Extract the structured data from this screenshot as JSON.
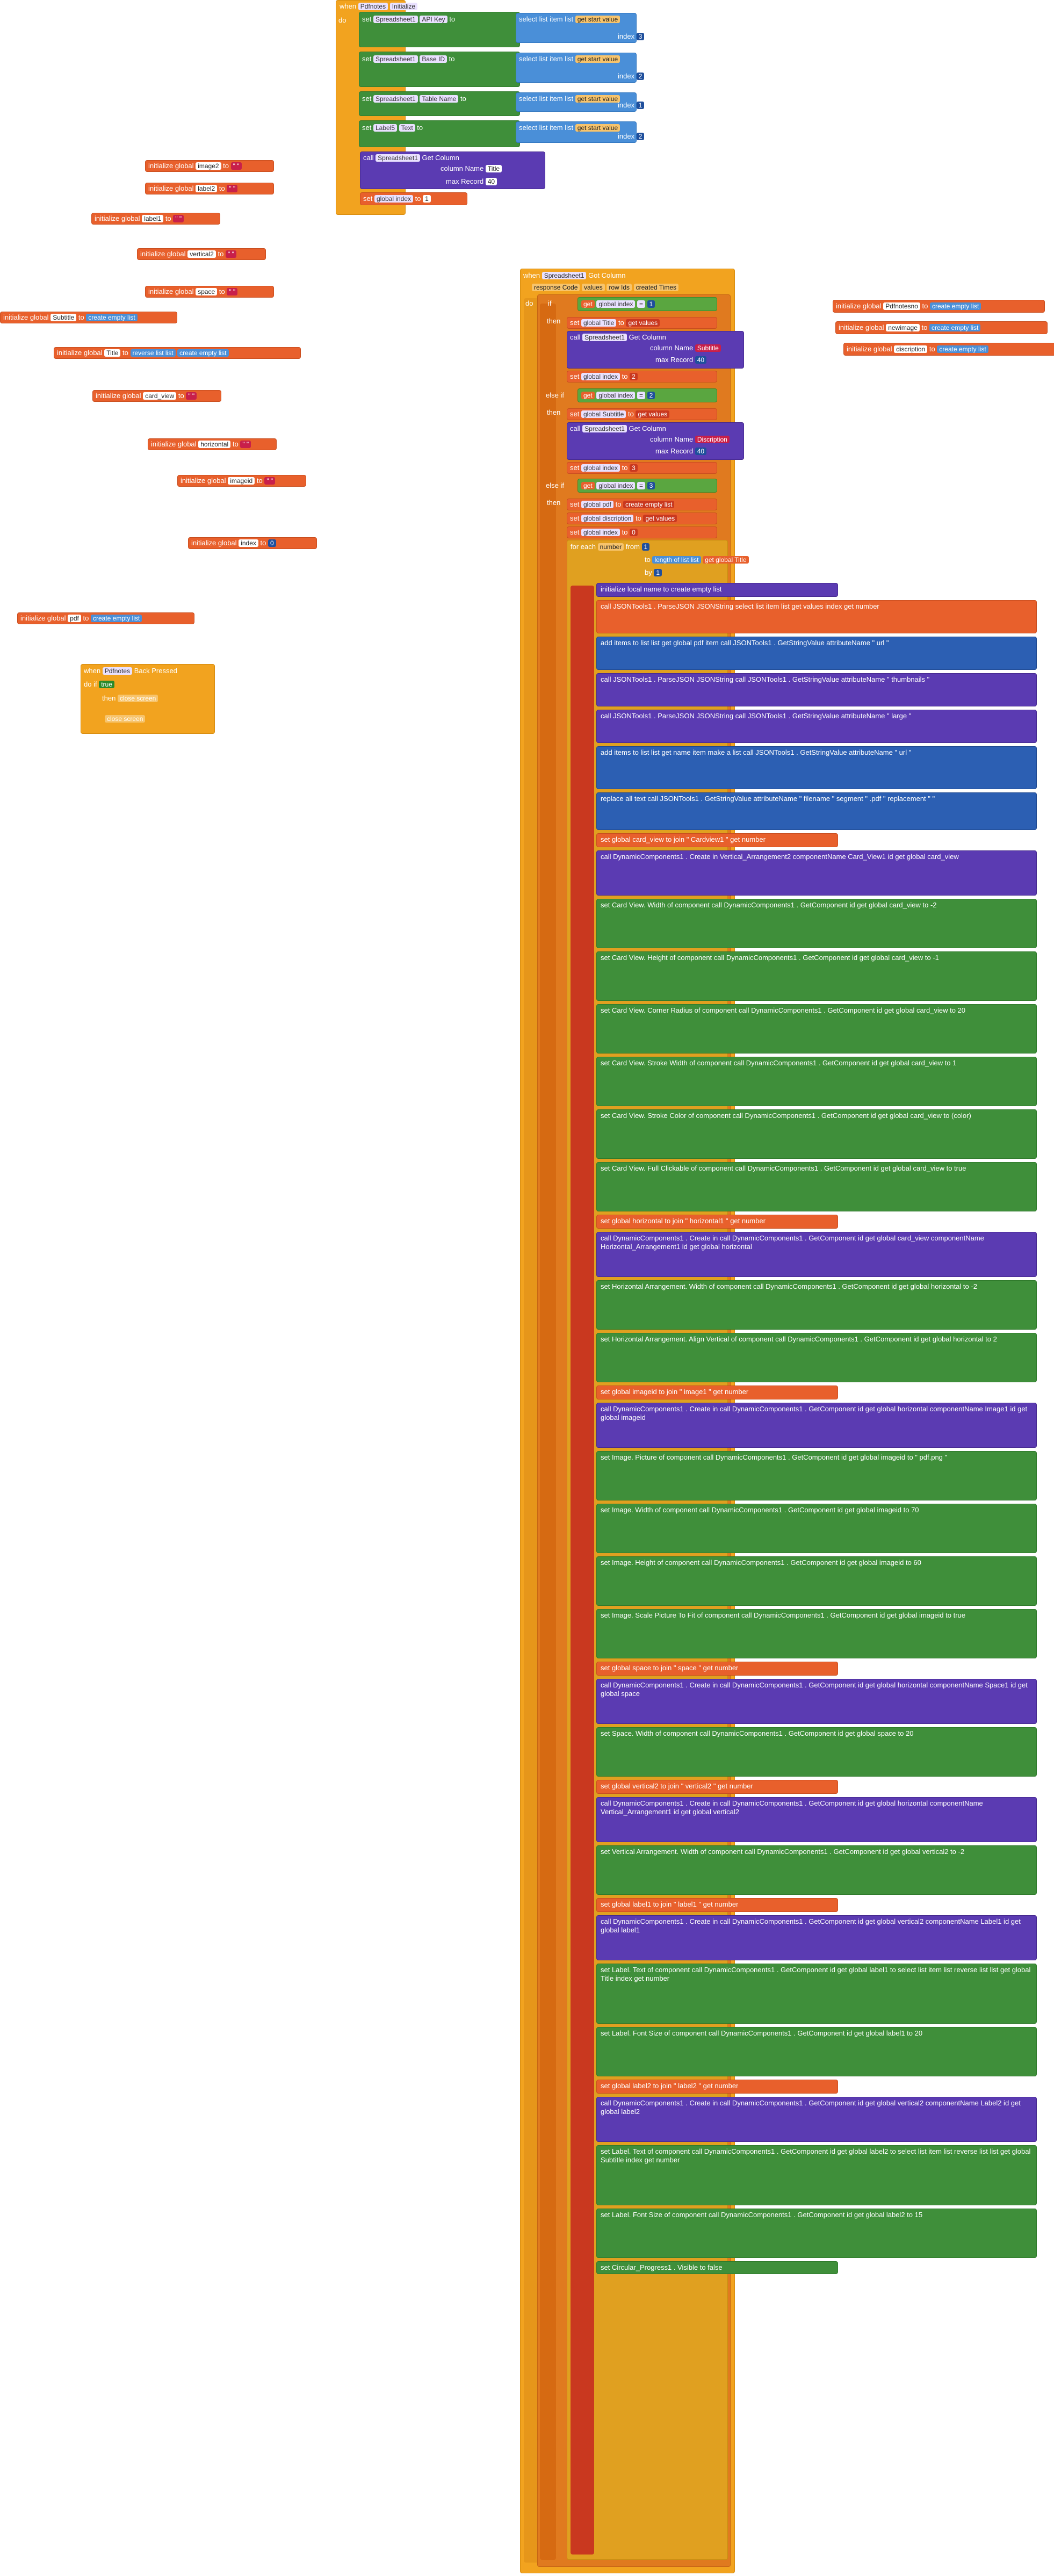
{
  "top_event": {
    "when_label": "when",
    "component": "Pdfnotes",
    "event": "Initialize",
    "do_label": "do",
    "rows": [
      {
        "set": "set",
        "target": "Spreadsheet1",
        "prop": "API Key",
        "to": "to",
        "fn": "select list item  list",
        "arg": "get start value",
        "index_label": "index",
        "index": "3"
      },
      {
        "set": "set",
        "target": "Spreadsheet1",
        "prop": "Base ID",
        "to": "to",
        "fn": "select list item  list",
        "arg": "get start value",
        "index_label": "index",
        "index": "2"
      },
      {
        "set": "set",
        "target": "Spreadsheet1",
        "prop": "Table Name",
        "to": "to",
        "fn": "select list item  list",
        "arg": "get start value",
        "index_label": "index",
        "index": "1"
      },
      {
        "set": "set",
        "target": "Label5",
        "prop": "Text",
        "to": "to",
        "fn": "select list item  list",
        "arg": "get start value",
        "index_label": "index",
        "index": "2"
      }
    ],
    "call": "call",
    "call_comp": "Spreadsheet1",
    "call_method": "Get Column",
    "column_name_label": "column Name",
    "column_name": "Title",
    "max_record_label": "max Record",
    "max_record": "40",
    "set_index": "set",
    "index_var": "global index",
    "index_to": "to",
    "index_val": "1"
  },
  "globals_left": [
    {
      "label": "initialize global",
      "name": "image2",
      "to": "to",
      "value": "\" \""
    },
    {
      "label": "initialize global",
      "name": "label2",
      "to": "to",
      "value": "\" \""
    },
    {
      "label": "initialize global",
      "name": "label1",
      "to": "to",
      "value": "\" \""
    },
    {
      "label": "initialize global",
      "name": "vertical2",
      "to": "to",
      "value": "\" \""
    },
    {
      "label": "initialize global",
      "name": "space",
      "to": "to",
      "value": "\" \""
    },
    {
      "label": "initialize global",
      "name": "Subtitle",
      "to": "to",
      "value": "create empty list"
    },
    {
      "label": "initialize global",
      "name": "Title",
      "to": "to",
      "value": "reverse list  list",
      "inner": "create empty list"
    },
    {
      "label": "initialize global",
      "name": "card_view",
      "to": "to",
      "value": "\" \""
    },
    {
      "label": "initialize global",
      "name": "horizontal",
      "to": "to",
      "value": "\" \""
    },
    {
      "label": "initialize global",
      "name": "imageid",
      "to": "to",
      "value": "\" \""
    },
    {
      "label": "initialize global",
      "name": "index",
      "to": "to",
      "value": "0"
    },
    {
      "label": "initialize global",
      "name": "pdf",
      "to": "to",
      "value": "create empty list"
    }
  ],
  "globals_right": [
    {
      "label": "initialize global",
      "name": "Pdfnotesno",
      "to": "to",
      "value": "create empty list"
    },
    {
      "label": "initialize global",
      "name": "newimage",
      "to": "to",
      "value": "create empty list"
    },
    {
      "label": "initialize global",
      "name": "discription",
      "to": "to",
      "value": "create empty list"
    }
  ],
  "back_event": {
    "when_label": "when",
    "component": "Pdfnotes",
    "event": "Back Pressed",
    "do_label": "do",
    "if_label": "if",
    "if_value": "true",
    "then_label": "then",
    "then_value": "close screen",
    "else_value": "close screen"
  },
  "main_event": {
    "when_label": "when",
    "component": "Spreadsheet1",
    "event": "Got Column",
    "params": [
      "response Code",
      "values",
      "row Ids",
      "created Times"
    ],
    "do_label": "do",
    "if_label": "if",
    "cond1": {
      "get": "get",
      "var": "global index",
      "op": "=",
      "val": "1"
    },
    "then_label": "then",
    "then1": [
      {
        "kind": "set",
        "text": "set",
        "var": "global Title",
        "to": "to",
        "val": "get values"
      },
      {
        "kind": "call",
        "text": "call",
        "comp": "Spreadsheet1",
        "method": "Get Column",
        "p1": "column Name",
        "v1": "Subtitle",
        "p2": "max Record",
        "v2": "40"
      },
      {
        "kind": "set",
        "text": "set",
        "var": "global index",
        "to": "to",
        "val": "2"
      }
    ],
    "elseif_label": "else if",
    "cond2": {
      "get": "get",
      "var": "global index",
      "op": "=",
      "val": "2"
    },
    "then2": [
      {
        "kind": "set",
        "text": "set",
        "var": "global Subtitle",
        "to": "to",
        "val": "get values"
      },
      {
        "kind": "call",
        "text": "call",
        "comp": "Spreadsheet1",
        "method": "Get Column",
        "p1": "column Name",
        "v1": "Discription",
        "p2": "max Record",
        "v2": "40"
      },
      {
        "kind": "set",
        "text": "set",
        "var": "global index",
        "to": "to",
        "val": "3"
      }
    ],
    "cond3": {
      "get": "get",
      "var": "global index",
      "op": "=",
      "val": "3"
    },
    "then3": [
      {
        "kind": "set",
        "text": "set",
        "var": "global pdf",
        "to": "to",
        "val": "create empty list"
      },
      {
        "kind": "set",
        "text": "set",
        "var": "global discription",
        "to": "to",
        "val": "get values"
      },
      {
        "kind": "set",
        "text": "set",
        "var": "global index",
        "to": "to",
        "val": "0"
      }
    ],
    "foreach": {
      "label": "for each",
      "var": "number",
      "from": "from",
      "from_val": "1",
      "to": "to",
      "to_val": "length of list  list",
      "to_inner": "get global Title",
      "by": "by",
      "by_val": "1"
    }
  },
  "loop_rows": [
    "initialize local  name  to  create empty list",
    "call JSONTools1 . ParseJSON   JSONString  select list item list  get values  index  get number",
    "add items to list  list  get global pdf   item  call JSONTools1 . GetStringValue  attributeName  \" url \"",
    "call JSONTools1 . ParseJSON   JSONString  call JSONTools1 . GetStringValue  attributeName  \" thumbnails \"",
    "call JSONTools1 . ParseJSON   JSONString  call JSONTools1 . GetStringValue  attributeName  \" large \"",
    "add items to list  list  get name   item  make a list  call JSONTools1 . GetStringValue  attributeName  \" url \"",
    "replace all text  call JSONTools1 . GetStringValue  attributeName  \" filename \"   segment  \" .pdf \"   replacement  \" \"",
    "set global card_view  to  join  \" Cardview1 \"  get number",
    "call DynamicComponents1 . Create  in  Vertical_Arrangement2  componentName  Card_View1  id  get global card_view",
    "set Card View. Width  of component  call DynamicComponents1 . GetComponent  id  get global card_view   to  -2",
    "set Card View. Height  of component  call DynamicComponents1 . GetComponent  id  get global card_view   to  -1",
    "set Card View. Corner Radius  of component  call DynamicComponents1 . GetComponent  id  get global card_view   to  20",
    "set Card View. Stroke Width  of component  call DynamicComponents1 . GetComponent  id  get global card_view   to  1",
    "set Card View. Stroke Color  of component  call DynamicComponents1 . GetComponent  id  get global card_view   to  (color)",
    "set Card View. Full Clickable  of component  call DynamicComponents1 . GetComponent  id  get global card_view   to  true",
    "set global horizontal  to  join  \" horizontal1 \"  get number",
    "call DynamicComponents1 . Create  in  call DynamicComponents1 . GetComponent  id  get global card_view   componentName  Horizontal_Arrangement1  id  get global horizontal",
    "set Horizontal Arrangement. Width  of component  call DynamicComponents1 . GetComponent  id  get global horizontal   to  -2",
    "set Horizontal Arrangement. Align Vertical  of component  call DynamicComponents1 . GetComponent  id  get global horizontal   to  2",
    "set global imageid  to  join  \" image1 \"  get number",
    "call DynamicComponents1 . Create  in  call DynamicComponents1 . GetComponent  id  get global horizontal   componentName  Image1  id  get global imageid",
    "set Image. Picture  of component  call DynamicComponents1 . GetComponent  id  get global imageid   to  \" pdf.png \"",
    "set Image. Width  of component  call DynamicComponents1 . GetComponent  id  get global imageid   to  70",
    "set Image. Height  of component  call DynamicComponents1 . GetComponent  id  get global imageid   to  60",
    "set Image. Scale Picture To Fit  of component  call DynamicComponents1 . GetComponent  id  get global imageid   to  true",
    "set global space  to  join  \" space \"  get number",
    "call DynamicComponents1 . Create  in  call DynamicComponents1 . GetComponent  id  get global horizontal   componentName  Space1  id  get global space",
    "set Space. Width  of component  call DynamicComponents1 . GetComponent  id  get global space   to  20",
    "set global vertical2  to  join  \" vertical2 \"  get number",
    "call DynamicComponents1 . Create  in  call DynamicComponents1 . GetComponent  id  get global horizontal   componentName  Vertical_Arrangement1  id  get global vertical2",
    "set Vertical Arrangement. Width  of component  call DynamicComponents1 . GetComponent  id  get global vertical2   to  -2",
    "set global label1  to  join  \" label1 \"  get number",
    "call DynamicComponents1 . Create  in  call DynamicComponents1 . GetComponent  id  get global vertical2   componentName  Label1  id  get global label1",
    "set Label. Text  of component  call DynamicComponents1 . GetComponent  id  get global label1   to  select list item  list  reverse list  list  get global Title   index  get number",
    "set Label. Font Size  of component  call DynamicComponents1 . GetComponent  id  get global label1   to  20",
    "set global label2  to  join  \" label2 \"  get number",
    "call DynamicComponents1 . Create  in  call DynamicComponents1 . GetComponent  id  get global vertical2   componentName  Label2  id  get global label2",
    "set Label. Text  of component  call DynamicComponents1 . GetComponent  id  get global label2   to  select list item  list  reverse list  list  get global Subtitle   index  get number",
    "set Label. Font Size  of component  call DynamicComponents1 . GetComponent  id  get global label2   to  15",
    "set Circular_Progress1 . Visible  to  false"
  ]
}
